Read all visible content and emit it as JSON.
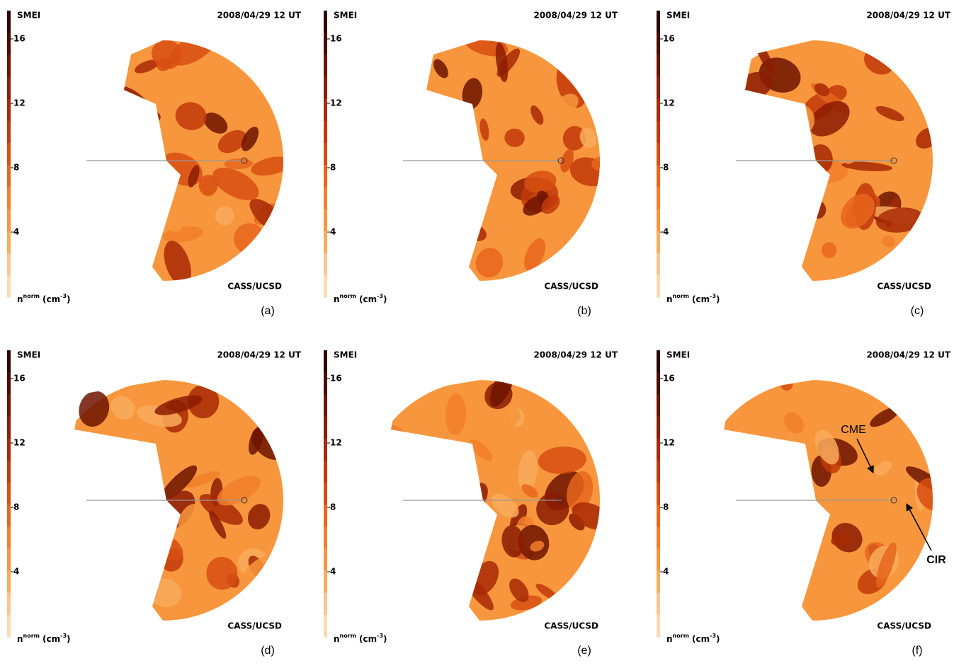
{
  "panels": [
    {
      "instrument": "SMEI",
      "date": "2008/04/29 12 UT",
      "colorbar_ticks": [
        16,
        12,
        8,
        4
      ],
      "colorbar_label": {
        "symbol": "n",
        "superscript": "norm",
        "unit": "(cm",
        "unit_exponent": "-3",
        "close": ")"
      },
      "credit": "CASS/UCSD",
      "label": "(a)"
    },
    {
      "instrument": "SMEI",
      "date": "2008/04/29 12 UT",
      "colorbar_ticks": [
        16,
        12,
        8,
        4
      ],
      "colorbar_label": {
        "symbol": "n",
        "superscript": "norm",
        "unit": "(cm",
        "unit_exponent": "-3",
        "close": ")"
      },
      "credit": "CASS/UCSD",
      "label": "(b)"
    },
    {
      "instrument": "SMEI",
      "date": "2008/04/29 12 UT",
      "colorbar_ticks": [
        16,
        12,
        8,
        4
      ],
      "colorbar_label": {
        "symbol": "n",
        "superscript": "norm",
        "unit": "(cm",
        "unit_exponent": "-3",
        "close": ")"
      },
      "credit": "CASS/UCSD",
      "label": "(c)"
    },
    {
      "instrument": "SMEI",
      "date": "2008/04/29 12 UT",
      "colorbar_ticks": [
        16,
        12,
        8,
        4
      ],
      "colorbar_label": {
        "symbol": "n",
        "superscript": "norm",
        "unit": "(cm",
        "unit_exponent": "-3",
        "close": ")"
      },
      "credit": "CASS/UCSD",
      "label": "(d)"
    },
    {
      "instrument": "SMEI",
      "date": "2008/04/29 12 UT",
      "colorbar_ticks": [
        16,
        12,
        8,
        4
      ],
      "colorbar_label": {
        "symbol": "n",
        "superscript": "norm",
        "unit": "(cm",
        "unit_exponent": "-3",
        "close": ")"
      },
      "credit": "CASS/UCSD",
      "label": "(e)"
    },
    {
      "instrument": "SMEI",
      "date": "2008/04/29 12 UT",
      "colorbar_ticks": [
        16,
        12,
        8,
        4
      ],
      "colorbar_label": {
        "symbol": "n",
        "superscript": "norm",
        "unit": "(cm",
        "unit_exponent": "-3",
        "close": ")"
      },
      "credit": "CASS/UCSD",
      "label": "(f)"
    }
  ],
  "annotations": {
    "cme": "CME",
    "cir": "CIR"
  }
}
